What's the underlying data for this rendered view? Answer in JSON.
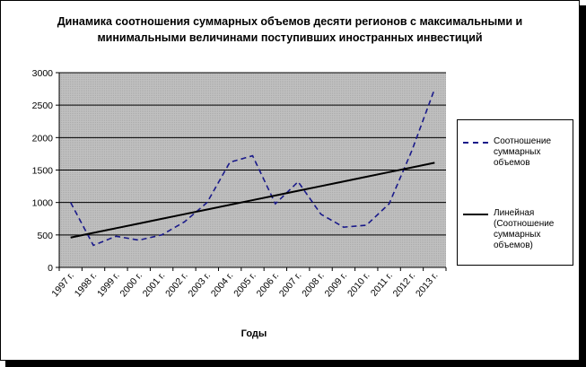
{
  "chart_data": {
    "type": "line",
    "title_lines": [
      "Динамика соотношения суммарных объемов десяти регионов с максимальными и",
      "минимальными величинами поступивших иностранных инвестиций"
    ],
    "xlabel": "Годы",
    "ylabel": "",
    "categories": [
      "1997 г.",
      "1998 г.",
      "1999 г.",
      "2000 г.",
      "2001 г.",
      "2002 г.",
      "2003 г.",
      "2004 г.",
      "2005 г.",
      "2006 г.",
      "2007 г.",
      "2008 г.",
      "2009 г.",
      "2010 г.",
      "2011 г.",
      "2012 г.",
      "2013 г."
    ],
    "ylim": [
      0,
      3000
    ],
    "yticks": [
      0,
      500,
      1000,
      1500,
      2000,
      2500,
      3000
    ],
    "series": [
      {
        "name": "Соотношение суммарных объемов",
        "style": "dashed",
        "color": "#1a1a8a",
        "values": [
          1000,
          340,
          480,
          420,
          500,
          700,
          1000,
          1620,
          1720,
          980,
          1320,
          820,
          620,
          650,
          980,
          1800,
          2750
        ]
      },
      {
        "name": "Линейная (Соотношение суммарных объемов)",
        "style": "solid",
        "color": "#000000",
        "values": [
          460,
          532,
          604,
          676,
          748,
          820,
          892,
          964,
          1036,
          1108,
          1180,
          1252,
          1324,
          1396,
          1468,
          1540,
          1612
        ]
      }
    ],
    "grid": true,
    "legend_position": "right",
    "plot_background": "#c0c0c0"
  }
}
